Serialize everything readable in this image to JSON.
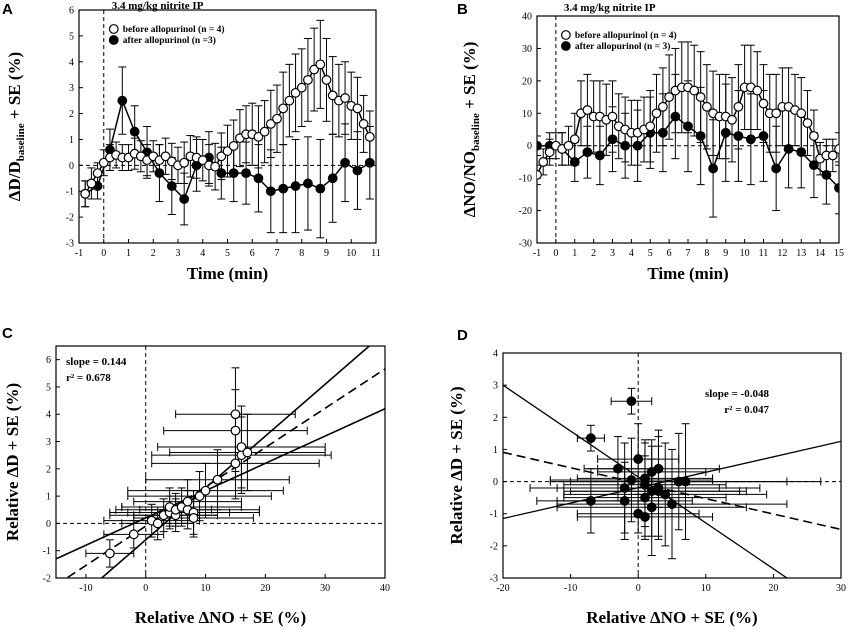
{
  "figure": {
    "width": 851,
    "height": 633
  },
  "chart_data": [
    {
      "panel": "A",
      "type": "line",
      "annotation": "3.4 mg/kg nitrite IP",
      "xlabel": "Time (min)",
      "ylabel_main": "ΔD/D",
      "ylabel_sub": "baseline",
      "ylabel_tail": " + SE (%)",
      "xlim": [
        -1,
        11
      ],
      "ylim": [
        -3,
        6
      ],
      "xticks": [
        -1,
        0,
        1,
        2,
        3,
        4,
        5,
        6,
        7,
        8,
        9,
        10,
        11
      ],
      "yticks": [
        -3,
        -2,
        -1,
        0,
        1,
        2,
        3,
        4,
        5,
        6
      ],
      "ref_lines": {
        "y": 0,
        "x": 0
      },
      "series": [
        {
          "name": "before allopurinol (n = 4)",
          "marker": "open",
          "x": [
            -0.75,
            -0.5,
            -0.25,
            0,
            0.25,
            0.5,
            0.75,
            1,
            1.25,
            1.5,
            1.75,
            2,
            2.25,
            2.5,
            2.75,
            3,
            3.25,
            3.5,
            3.75,
            4,
            4.25,
            4.5,
            4.75,
            5,
            5.25,
            5.5,
            5.75,
            6,
            6.25,
            6.5,
            6.75,
            7,
            7.25,
            7.5,
            7.75,
            8,
            8.25,
            8.5,
            8.75,
            9,
            9.25,
            9.5,
            9.75,
            10,
            10.25,
            10.5,
            10.75
          ],
          "y": [
            -1.1,
            -0.7,
            -0.3,
            0.1,
            0.3,
            0.4,
            0.3,
            0.3,
            0.45,
            0.35,
            0.2,
            0.35,
            0.2,
            0.35,
            0.15,
            0,
            0.1,
            0.35,
            0.3,
            0.2,
            0,
            -0.05,
            0.35,
            0.55,
            0.75,
            1.05,
            1.2,
            1.2,
            1.1,
            1.3,
            1.6,
            1.8,
            2.2,
            2.5,
            2.8,
            3.0,
            3.3,
            3.7,
            3.9,
            3.3,
            2.7,
            2.5,
            2.6,
            2.3,
            2.2,
            1.6,
            1.1
          ],
          "err": [
            0.5,
            0.6,
            0.4,
            0.5,
            0.5,
            0.5,
            0.5,
            0.5,
            0.6,
            0.6,
            0.6,
            0.6,
            0.6,
            0.7,
            0.7,
            0.7,
            0.8,
            0.8,
            0.8,
            0.8,
            0.8,
            0.9,
            0.9,
            1.0,
            1.0,
            1.1,
            1.1,
            1.2,
            1.2,
            1.2,
            1.3,
            1.3,
            1.4,
            1.4,
            1.5,
            1.5,
            1.6,
            1.6,
            1.7,
            1.6,
            1.5,
            1.4,
            1.4,
            1.3,
            1.2,
            1.1,
            1.0
          ]
        },
        {
          "name": "after allopurinol (n =3)",
          "marker": "filled",
          "x": [
            -0.75,
            -0.25,
            0.25,
            0.75,
            1.25,
            1.75,
            2.25,
            2.75,
            3.25,
            3.75,
            4.25,
            4.75,
            5.25,
            5.75,
            6.25,
            6.75,
            7.25,
            7.75,
            8.25,
            8.75,
            9.25,
            9.75,
            10.25,
            10.75
          ],
          "y": [
            -1.1,
            -0.8,
            0.6,
            2.5,
            1.3,
            0.5,
            -0.3,
            -0.8,
            -1.3,
            0,
            0.3,
            -0.3,
            -0.3,
            -0.3,
            -0.5,
            -1.0,
            -0.9,
            -0.8,
            -0.7,
            -0.9,
            -0.5,
            0.1,
            -0.2,
            0.1
          ],
          "err": [
            0.5,
            0.5,
            0.8,
            1.3,
            1.0,
            1.0,
            1.1,
            1.1,
            1.0,
            1.0,
            1.0,
            1.0,
            1.1,
            1.2,
            1.3,
            1.6,
            1.7,
            1.8,
            1.8,
            1.9,
            1.7,
            1.5,
            1.5,
            1.4
          ]
        }
      ]
    },
    {
      "panel": "B",
      "type": "line",
      "annotation": "3.4 mg/kg nitrite IP",
      "xlabel": "Time (min)",
      "ylabel_main": "ΔNO/NO",
      "ylabel_sub": "baseline",
      "ylabel_tail": " + SE (%)",
      "xlim": [
        -1,
        15
      ],
      "ylim": [
        -30,
        40
      ],
      "xticks": [
        -1,
        0,
        1,
        2,
        3,
        4,
        5,
        6,
        7,
        8,
        9,
        10,
        11,
        12,
        13,
        14,
        15
      ],
      "yticks": [
        -30,
        -20,
        -10,
        0,
        10,
        20,
        30,
        40
      ],
      "ref_lines": {
        "y": 0,
        "x": 0
      },
      "series": [
        {
          "name": "before allopurinol (n = 4)",
          "marker": "open",
          "x": [
            -1,
            -0.67,
            -0.33,
            0,
            0.33,
            0.67,
            1,
            1.33,
            1.67,
            2,
            2.33,
            2.67,
            3,
            3.33,
            3.67,
            4,
            4.33,
            4.67,
            5,
            5.33,
            5.67,
            6,
            6.33,
            6.67,
            7,
            7.33,
            7.67,
            8,
            8.33,
            8.67,
            9,
            9.33,
            9.67,
            10,
            10.33,
            10.67,
            11,
            11.33,
            11.67,
            12,
            12.33,
            12.67,
            13,
            13.33,
            13.67,
            14,
            14.33,
            14.67,
            15
          ],
          "y": [
            -9,
            -5,
            -2,
            0,
            -1,
            0,
            2,
            10,
            11,
            9,
            9,
            8,
            9,
            6,
            5,
            4,
            4,
            5,
            6,
            10,
            12,
            15,
            17,
            18,
            18,
            17,
            15,
            12,
            10,
            9,
            9,
            8,
            12,
            18,
            18,
            17,
            13,
            10,
            10,
            12,
            12,
            11,
            10,
            7,
            3,
            -4,
            -3,
            -3,
            -1
          ],
          "err": [
            3,
            4,
            4,
            4,
            5,
            6,
            8,
            10,
            11,
            11,
            11,
            11,
            11,
            10,
            10,
            10,
            10,
            10,
            11,
            12,
            12,
            13,
            13,
            14,
            14,
            14,
            14,
            13,
            13,
            13,
            13,
            13,
            13,
            13,
            13,
            12,
            12,
            12,
            12,
            12,
            12,
            11,
            11,
            10,
            8,
            5,
            5,
            5,
            5
          ]
        },
        {
          "name": "after allopurinol (n = 3)",
          "marker": "filled",
          "x": [
            -1,
            -0.33,
            0.33,
            1,
            1.67,
            2.33,
            3,
            3.67,
            4.33,
            5,
            5.67,
            6.33,
            7,
            7.67,
            8.33,
            9,
            9.67,
            10.33,
            11,
            11.67,
            12.33,
            13,
            13.67,
            14.33,
            15
          ],
          "y": [
            0,
            0,
            -1,
            -5,
            -2,
            -3,
            2,
            0,
            0,
            4,
            4,
            9,
            6,
            3,
            -7,
            4,
            3,
            2,
            3,
            -7,
            -1,
            -2,
            -6,
            -9,
            -13
          ],
          "err": [
            3,
            4,
            5,
            6,
            8,
            9,
            10,
            10,
            11,
            11,
            12,
            13,
            14,
            15,
            15,
            15,
            14,
            14,
            14,
            13,
            12,
            11,
            10,
            9,
            8
          ]
        }
      ]
    },
    {
      "panel": "C",
      "type": "scatter",
      "xlabel": "Relative ΔNO + SE (%)",
      "ylabel": "Relative ΔD + SE (%)",
      "xlim": [
        -15,
        40
      ],
      "ylim": [
        -2,
        6.5
      ],
      "xticks": [
        -10,
        0,
        10,
        20,
        30,
        40
      ],
      "yticks": [
        -2,
        -1,
        0,
        1,
        2,
        3,
        4,
        5,
        6
      ],
      "slope_text": "slope = 0.144",
      "r2_text": "r² = 0.678",
      "ref_lines": {
        "y": 0,
        "x": 0
      },
      "fit_slope": 0.144,
      "fit_intercept": -0.1,
      "ci_lower": {
        "slope": 0.1,
        "intercept": 0.2
      },
      "ci_upper": {
        "slope": 0.19,
        "intercept": -0.6
      },
      "points": {
        "x": [
          -6,
          -2,
          1,
          2,
          3,
          4,
          4,
          5,
          5,
          6,
          7,
          7,
          8,
          8,
          9,
          10,
          12,
          15,
          15,
          15,
          16,
          16,
          17
        ],
        "y": [
          -1.1,
          -0.4,
          0.1,
          0,
          0.3,
          0.4,
          0.6,
          0.3,
          0.5,
          0.6,
          0.5,
          0.8,
          0.4,
          0.2,
          1.0,
          1.2,
          1.6,
          2.2,
          3.4,
          4.0,
          2.5,
          2.8,
          2.6
        ],
        "xerr": [
          4,
          5,
          8,
          6,
          9,
          10,
          8,
          7,
          6,
          10,
          12,
          9,
          11,
          10,
          12,
          13,
          12,
          14,
          12,
          10,
          15,
          14,
          13
        ],
        "yerr": [
          0.5,
          0.5,
          0.6,
          0.6,
          0.6,
          0.6,
          0.7,
          0.6,
          0.6,
          0.7,
          0.7,
          0.8,
          0.8,
          0.7,
          0.9,
          1.0,
          1.1,
          1.3,
          1.5,
          1.7,
          1.4,
          1.5,
          1.4
        ]
      }
    },
    {
      "panel": "D",
      "type": "scatter",
      "xlabel": "Relative ΔNO + SE (%)",
      "ylabel": "Relative ΔD + SE (%)",
      "xlim": [
        -20,
        30
      ],
      "ylim": [
        -3,
        4
      ],
      "xticks": [
        -20,
        -10,
        0,
        10,
        20,
        30
      ],
      "yticks": [
        -3,
        -2,
        -1,
        0,
        1,
        2,
        3,
        4
      ],
      "slope_text": "slope = -0.048",
      "r2_text": "r² = 0.047",
      "ref_lines": {
        "y": 0,
        "x": 0
      },
      "fit_slope": -0.048,
      "fit_intercept": -0.05,
      "ci_lines": [
        {
          "x": [
            -20,
            30
          ],
          "y": [
            -1.15,
            1.25
          ]
        },
        {
          "x": [
            -20,
            22
          ],
          "y": [
            3.0,
            -3.0
          ]
        }
      ],
      "points": {
        "x": [
          -7,
          -1,
          -3,
          0,
          2,
          1,
          3,
          -1,
          -2,
          1,
          2,
          3,
          6,
          7,
          -7,
          -2,
          1,
          2,
          3,
          4,
          5,
          0,
          1
        ],
        "y": [
          1.35,
          2.5,
          0.4,
          0.7,
          0.3,
          0.1,
          0.4,
          0.05,
          -0.2,
          -0.1,
          -0.3,
          -0.2,
          0,
          0,
          -0.6,
          -0.6,
          -0.5,
          -0.8,
          -0.3,
          -0.4,
          -0.7,
          -1.0,
          -1.1
        ],
        "xerr": [
          2,
          3,
          5,
          6,
          8,
          10,
          9,
          12,
          14,
          12,
          13,
          15,
          16,
          20,
          8,
          10,
          12,
          14,
          13,
          15,
          17,
          9,
          10
        ],
        "yerr": [
          0.4,
          0.4,
          1.0,
          1.1,
          1.0,
          1.2,
          1.2,
          1.3,
          1.4,
          1.3,
          1.4,
          1.6,
          1.5,
          1.8,
          1.0,
          1.2,
          1.3,
          1.5,
          1.4,
          1.6,
          1.7,
          0.6,
          0.6
        ]
      }
    }
  ]
}
